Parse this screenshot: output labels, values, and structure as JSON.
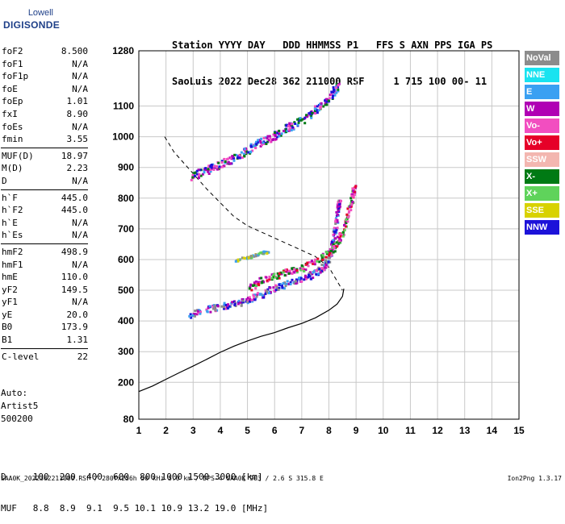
{
  "logo": {
    "top": "Lowell",
    "bottom": "DIGISONDE"
  },
  "header": {
    "line1": "Station YYYY DAY   DDD HHMMSS P1   FFS S AXN PPS IGA PS",
    "line2": "SaoLuis 2022 Dec28 362 211000 RSF     1 715 100 00- 11"
  },
  "params": [
    [
      {
        "label": "foF2",
        "value": "8.500"
      },
      {
        "label": "foF1",
        "value": "N/A"
      },
      {
        "label": "foF1p",
        "value": "N/A"
      },
      {
        "label": "foE",
        "value": "N/A"
      },
      {
        "label": "foEp",
        "value": "1.01"
      },
      {
        "label": "fxI",
        "value": "8.90"
      },
      {
        "label": "foEs",
        "value": "N/A"
      },
      {
        "label": "fmin",
        "value": "3.55"
      }
    ],
    [
      {
        "label": "MUF(D)",
        "value": "18.97"
      },
      {
        "label": "M(D)",
        "value": "2.23"
      },
      {
        "label": "D",
        "value": "N/A"
      }
    ],
    [
      {
        "label": "h`F",
        "value": "445.0"
      },
      {
        "label": "h`F2",
        "value": "445.0"
      },
      {
        "label": "h`E",
        "value": "N/A"
      },
      {
        "label": "h`Es",
        "value": "N/A"
      }
    ],
    [
      {
        "label": "hmF2",
        "value": "498.9"
      },
      {
        "label": "hmF1",
        "value": "N/A"
      },
      {
        "label": "hmE",
        "value": "110.0"
      },
      {
        "label": "yF2",
        "value": "149.5"
      },
      {
        "label": "yF1",
        "value": "N/A"
      },
      {
        "label": "yE",
        "value": "20.0"
      },
      {
        "label": "B0",
        "value": "173.9"
      },
      {
        "label": "B1",
        "value": "1.31"
      }
    ],
    [
      {
        "label": "C-level",
        "value": "22"
      }
    ]
  ],
  "auto": {
    "line1": "Auto:",
    "line2": "Artist5",
    "line3": "500200"
  },
  "footer": {
    "d_line": "D     100  200  400  600  800 1000 1500 3000 [km]",
    "muf_line": "MUF   8.8  8.9  9.1  9.5 10.1 10.9 13.2 19.0 [MHz]"
  },
  "source_line": "SAA0K_2022362211000.RSF / 280fx256h 50 kHz 5.0 km / DPS-4 SAA0K 903 / 2.6 S 315.8 E",
  "version": "Ion2Png 1.3.17",
  "legend": [
    {
      "label": "NoVal",
      "color": "#8c8c8c"
    },
    {
      "label": "NNE",
      "color": "#19e3f0"
    },
    {
      "label": "E",
      "color": "#3aa0f2"
    },
    {
      "label": "W",
      "color": "#b000b4"
    },
    {
      "label": "Vo-",
      "color": "#f24ec0"
    },
    {
      "label": "Vo+",
      "color": "#e60028"
    },
    {
      "label": "SSW",
      "color": "#f3b6b0"
    },
    {
      "label": "X-",
      "color": "#007a14"
    },
    {
      "label": "X+",
      "color": "#5fd35b"
    },
    {
      "label": "SSE",
      "color": "#d8d200"
    },
    {
      "label": "NNW",
      "color": "#1c12d9"
    }
  ],
  "chart_data": {
    "type": "scatter",
    "xlim": [
      1,
      15
    ],
    "ylim": [
      80,
      1280
    ],
    "xticks": [
      1,
      2,
      3,
      4,
      5,
      6,
      7,
      8,
      9,
      10,
      11,
      12,
      13,
      14,
      15
    ],
    "yticks": [
      80,
      200,
      300,
      400,
      500,
      600,
      700,
      800,
      900,
      1000,
      1100,
      1280
    ],
    "grid": true,
    "profile_curve": [
      [
        1.0,
        170
      ],
      [
        1.5,
        188
      ],
      [
        2.0,
        210
      ],
      [
        2.5,
        232
      ],
      [
        3.0,
        253
      ],
      [
        3.5,
        275
      ],
      [
        4.0,
        298
      ],
      [
        4.5,
        318
      ],
      [
        5.0,
        335
      ],
      [
        5.5,
        350
      ],
      [
        6.0,
        362
      ],
      [
        6.5,
        378
      ],
      [
        7.0,
        392
      ],
      [
        7.5,
        410
      ],
      [
        8.0,
        435
      ],
      [
        8.3,
        455
      ],
      [
        8.5,
        480
      ],
      [
        8.55,
        505
      ]
    ],
    "model_trace_dashed": [
      [
        1.95,
        1000
      ],
      [
        2.3,
        950
      ],
      [
        3.0,
        880
      ],
      [
        3.5,
        830
      ],
      [
        4.0,
        785
      ],
      [
        4.5,
        740
      ],
      [
        5.0,
        710
      ],
      [
        5.5,
        690
      ],
      [
        6.0,
        670
      ],
      [
        6.5,
        650
      ],
      [
        7.0,
        630
      ],
      [
        7.5,
        610
      ],
      [
        8.0,
        575
      ],
      [
        8.3,
        530
      ],
      [
        8.5,
        500
      ]
    ],
    "o_trace": [
      [
        2.8,
        422
      ],
      [
        3.5,
        440
      ],
      [
        4.0,
        450
      ],
      [
        4.5,
        458
      ],
      [
        5.0,
        470
      ],
      [
        5.5,
        490
      ],
      [
        6.0,
        510
      ],
      [
        6.5,
        525
      ],
      [
        7.0,
        540
      ],
      [
        7.5,
        560
      ],
      [
        7.8,
        580
      ],
      [
        8.0,
        610
      ],
      [
        8.1,
        650
      ],
      [
        8.2,
        700
      ],
      [
        8.3,
        760
      ],
      [
        8.35,
        795
      ]
    ],
    "x_trace": [
      [
        5.0,
        505
      ],
      [
        5.5,
        535
      ],
      [
        6.0,
        550
      ],
      [
        6.5,
        565
      ],
      [
        7.0,
        575
      ],
      [
        7.5,
        600
      ],
      [
        8.0,
        625
      ],
      [
        8.3,
        660
      ],
      [
        8.5,
        700
      ],
      [
        8.7,
        760
      ],
      [
        8.85,
        810
      ],
      [
        8.9,
        840
      ]
    ],
    "multihop_trace": [
      [
        2.9,
        875
      ],
      [
        3.5,
        895
      ],
      [
        4.0,
        915
      ],
      [
        4.5,
        935
      ],
      [
        5.0,
        960
      ],
      [
        5.5,
        985
      ],
      [
        6.0,
        1010
      ],
      [
        6.5,
        1035
      ],
      [
        7.0,
        1060
      ],
      [
        7.5,
        1090
      ],
      [
        8.0,
        1130
      ],
      [
        8.3,
        1170
      ]
    ],
    "spread_echo": [
      [
        4.5,
        600
      ],
      [
        5.0,
        610
      ],
      [
        5.5,
        625
      ],
      [
        5.8,
        630
      ]
    ]
  }
}
